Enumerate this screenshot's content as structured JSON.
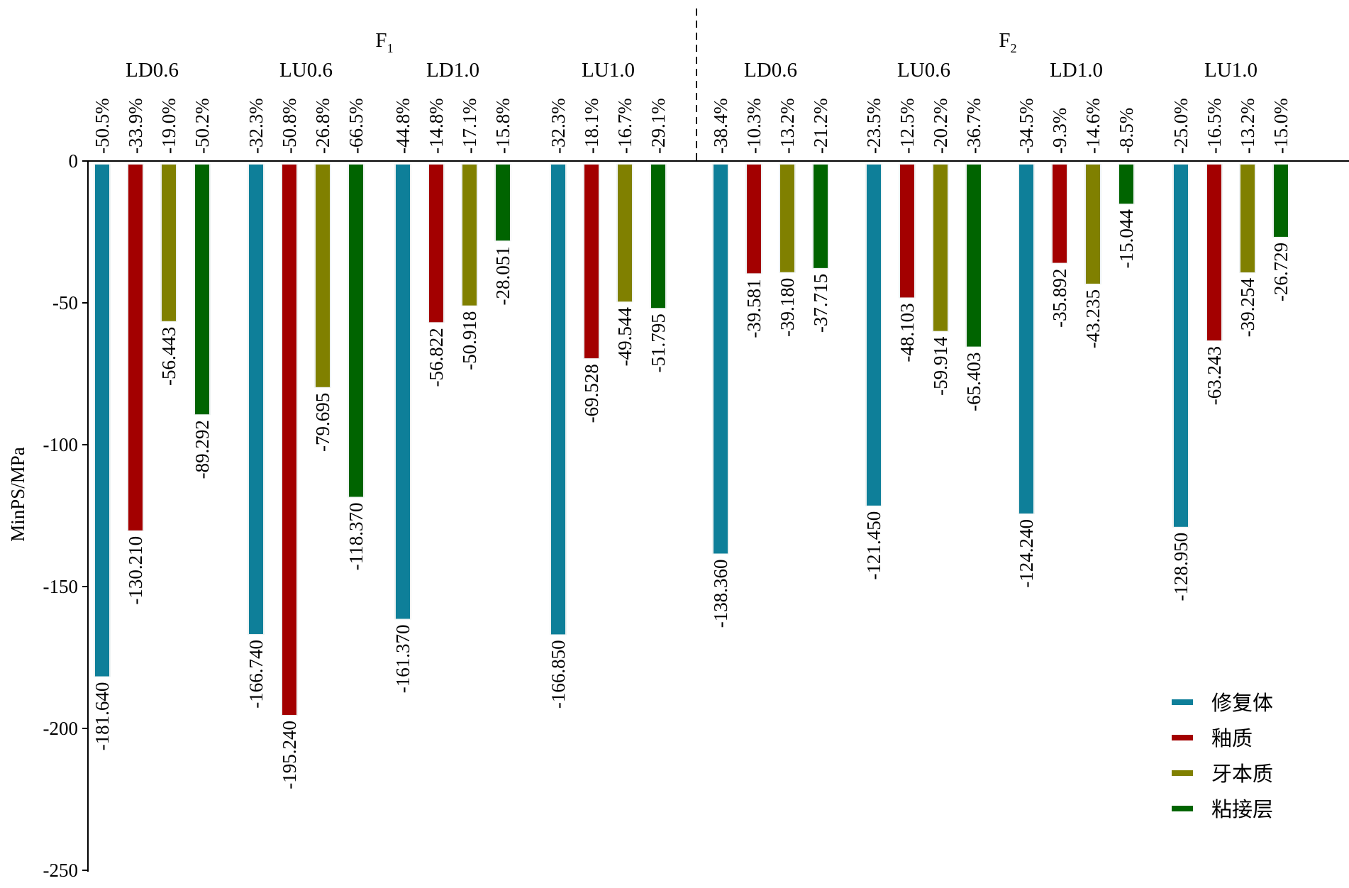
{
  "chart_data": {
    "type": "bar",
    "ylabel": "MinPS/MPa",
    "ylim": [
      -250,
      0
    ],
    "yticks": [
      0,
      -50,
      -100,
      -150,
      -200,
      -250
    ],
    "grid": false,
    "legend_position": "bottom-right",
    "groups": [
      {
        "label": "F",
        "subscript": "1",
        "subgroups": [
          {
            "label": "LD0.6",
            "values": [
              -181.64,
              -130.21,
              -56.443,
              -89.292
            ],
            "value_labels": [
              "-181.640",
              "-130.210",
              "-56.443",
              "-89.292"
            ],
            "percents": [
              "-50.5%",
              "-33.9%",
              "-19.0%",
              "-50.2%"
            ]
          },
          {
            "label": "LU0.6",
            "values": [
              -166.74,
              -195.24,
              -79.695,
              -118.37
            ],
            "value_labels": [
              "-166.740",
              "-195.240",
              "-79.695",
              "-118.370"
            ],
            "percents": [
              "-32.3%",
              "-50.8%",
              "-26.8%",
              "-66.5%"
            ]
          },
          {
            "label": "LD1.0",
            "values": [
              -161.37,
              -56.822,
              -50.918,
              -28.051
            ],
            "value_labels": [
              "-161.370",
              "-56.822",
              "-50.918",
              "-28.051"
            ],
            "percents": [
              "-44.8%",
              "-14.8%",
              "-17.1%",
              "-15.8%"
            ]
          },
          {
            "label": "LU1.0",
            "values": [
              -166.85,
              -69.528,
              -49.544,
              -51.795
            ],
            "value_labels": [
              "-166.850",
              "-69.528",
              "-49.544",
              "-51.795"
            ],
            "percents": [
              "-32.3%",
              "-18.1%",
              "-16.7%",
              "-29.1%"
            ]
          }
        ]
      },
      {
        "label": "F",
        "subscript": "2",
        "subgroups": [
          {
            "label": "LD0.6",
            "values": [
              -138.36,
              -39.581,
              -39.18,
              -37.715
            ],
            "value_labels": [
              "-138.360",
              "-39.581",
              "-39.180",
              "-37.715"
            ],
            "percents": [
              "-38.4%",
              "-10.3%",
              "-13.2%",
              "-21.2%"
            ]
          },
          {
            "label": "LU0.6",
            "values": [
              -121.45,
              -48.103,
              -59.914,
              -65.403
            ],
            "value_labels": [
              "-121.450",
              "-48.103",
              "-59.914",
              "-65.403"
            ],
            "percents": [
              "-23.5%",
              "-12.5%",
              "-20.2%",
              "-36.7%"
            ]
          },
          {
            "label": "LD1.0",
            "values": [
              -124.24,
              -35.892,
              -43.235,
              -15.044
            ],
            "value_labels": [
              "-124.240",
              "-35.892",
              "-43.235",
              "-15.044"
            ],
            "percents": [
              "-34.5%",
              "-9.3%",
              "-14.6%",
              "-8.5%"
            ]
          },
          {
            "label": "LU1.0",
            "values": [
              -128.95,
              -63.243,
              -39.254,
              -26.729
            ],
            "value_labels": [
              "-128.950",
              "-63.243",
              "-39.254",
              "-26.729"
            ],
            "percents": [
              "-25.0%",
              "-16.5%",
              "-13.2%",
              "-15.0%"
            ]
          }
        ]
      }
    ],
    "series": [
      {
        "name": "修复体",
        "color": "#0e7f99"
      },
      {
        "name": "釉质",
        "color": "#a30000"
      },
      {
        "name": "牙本质",
        "color": "#808000"
      },
      {
        "name": "粘接层",
        "color": "#006400"
      }
    ]
  }
}
